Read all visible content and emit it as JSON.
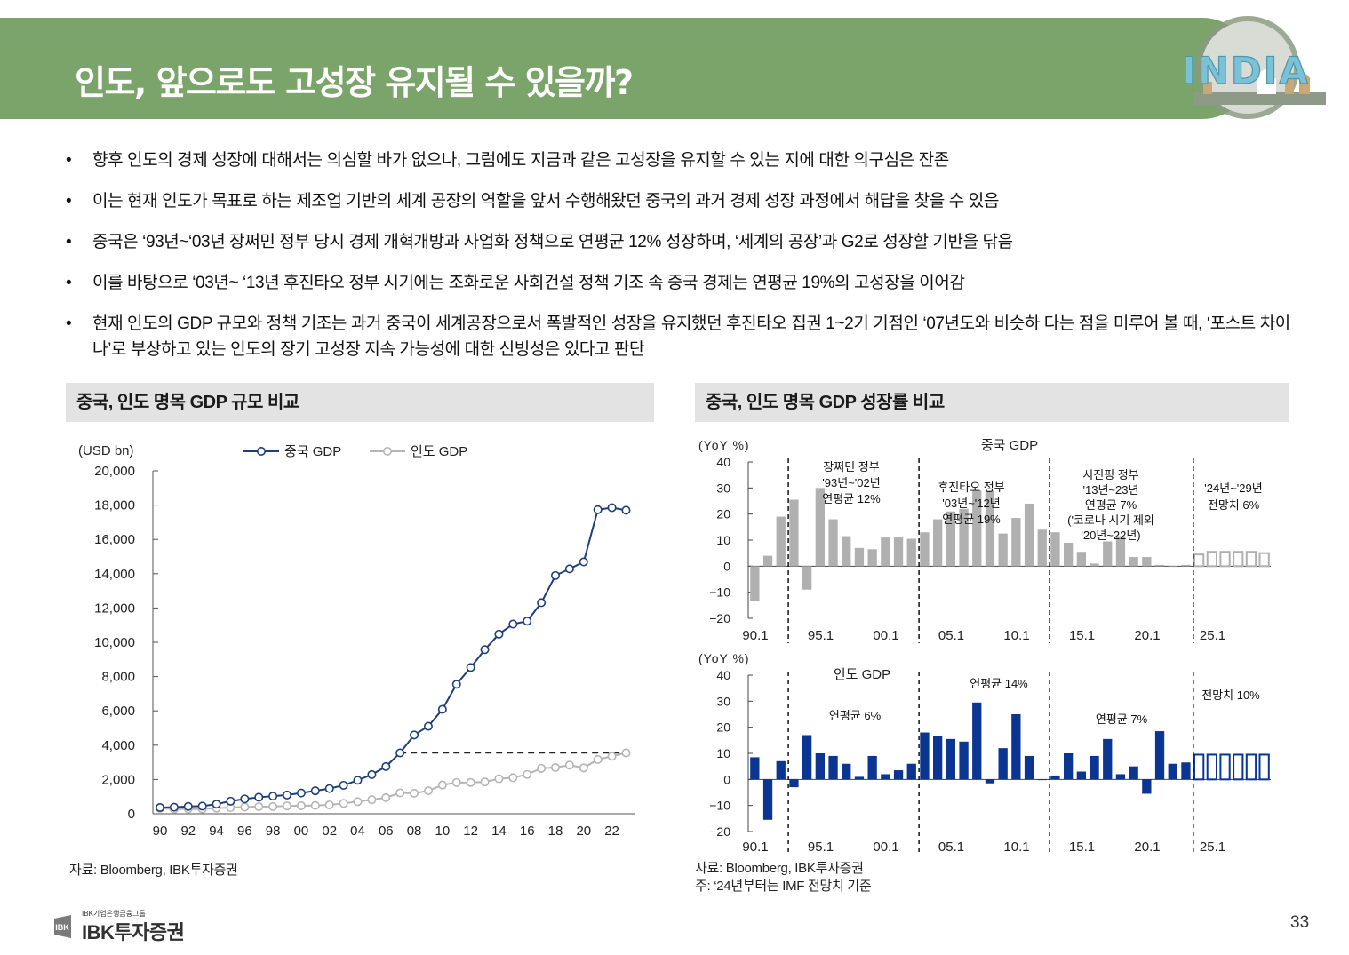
{
  "header": {
    "title": "인도, 앞으로도 고성장 유지될 수 있을까?",
    "badge_text": "INDIA"
  },
  "bullets": [
    "향후 인도의 경제 성장에 대해서는 의심할 바가 없으나, 그럼에도 지금과 같은 고성장을 유지할 수 있는 지에 대한 의구심은 잔존",
    "이는 현재 인도가 목표로 하는 제조업 기반의 세계 공장의 역할을 앞서 수행해왔던 중국의 과거 경제 성장 과정에서 해답을 찾을 수 있음",
    "중국은 ‘93년~‘03년 장쩌민 정부 당시 경제 개혁개방과 사업화 정책으로 연평균 12% 성장하며, ‘세계의 공장’과 G2로 성장할 기반을 닦음",
    "이를 바탕으로 ‘03년~ ‘13년 후진타오 정부 시기에는 조화로운 사회건설 정책 기조 속 중국 경제는 연평균 19%의 고성장을 이어감",
    "현재 인도의 GDP 규모와 정책 기조는 과거 중국이 세계공장으로서 폭발적인 성장을 유지했던 후진타오 집권 1~2기 기점인 ‘07년도와 비슷하 다는 점을 미루어 볼 때, ‘포스트 차이나’로 부상하고 있는 인도의 장기 고성장 지속 가능성에 대한 신빙성은 있다고 판단"
  ],
  "left_section": {
    "title": "중국, 인도 명목 GDP 규모 비교",
    "source": "자료: Bloomberg, IBK투자증권"
  },
  "right_section": {
    "title": "중국, 인도 명목 GDP 성장률 비교",
    "source": "자료: Bloomberg, IBK투자증권",
    "note": "주: ‘24년부터는 IMF 전망치 기준"
  },
  "footer": {
    "company_sub": "IBK기업은행금융그룹",
    "company": "IBK투자증권",
    "page": "33"
  },
  "colors": {
    "header_green": "#7ba46a",
    "china_line": "#1f3f7a",
    "india_line": "#b5b5b5",
    "china_bar": "#b0b0b0",
    "india_bar": "#0a3592"
  },
  "chart_data": [
    {
      "id": "gdp_level",
      "type": "line",
      "ylabel": "(USD bn)",
      "ylim": [
        0,
        20000
      ],
      "yticks": [
        0,
        2000,
        4000,
        6000,
        8000,
        10000,
        12000,
        14000,
        16000,
        18000,
        20000
      ],
      "ytick_labels": [
        "0",
        "2,000",
        "4,000",
        "6,000",
        "8,000",
        "10,000",
        "12,000",
        "14,000",
        "16,000",
        "18,000",
        "20,000"
      ],
      "x": [
        1990,
        1991,
        1992,
        1993,
        1994,
        1995,
        1996,
        1997,
        1998,
        1999,
        2000,
        2001,
        2002,
        2003,
        2004,
        2005,
        2006,
        2007,
        2008,
        2009,
        2010,
        2011,
        2012,
        2013,
        2014,
        2015,
        2016,
        2017,
        2018,
        2019,
        2020,
        2021,
        2022,
        2023
      ],
      "xtick_labels": [
        "90",
        "92",
        "94",
        "96",
        "98",
        "00",
        "02",
        "04",
        "06",
        "08",
        "10",
        "12",
        "14",
        "16",
        "18",
        "20",
        "22"
      ],
      "legend": [
        "중국 GDP",
        "인도 GDP"
      ],
      "series": [
        {
          "name": "중국 GDP",
          "values": [
            361,
            383,
            427,
            445,
            564,
            734,
            864,
            962,
            1029,
            1094,
            1211,
            1339,
            1471,
            1660,
            1955,
            2286,
            2752,
            3550,
            4594,
            5102,
            6087,
            7552,
            8532,
            9570,
            10476,
            11062,
            11233,
            12310,
            13895,
            14280,
            14688,
            17734,
            17849,
            17700
          ]
        },
        {
          "name": "인도 GDP",
          "values": [
            321,
            270,
            288,
            279,
            327,
            360,
            393,
            415,
            421,
            458,
            468,
            485,
            515,
            607,
            709,
            820,
            940,
            1216,
            1199,
            1342,
            1676,
            1823,
            1828,
            1857,
            2039,
            2103,
            2295,
            2651,
            2702,
            2835,
            2674,
            3167,
            3353,
            3550
          ]
        }
      ],
      "annotation": {
        "type": "dashed-hline",
        "value": 3550,
        "from_x": 2007,
        "to_x": 2023
      }
    },
    {
      "id": "china_growth",
      "type": "bar",
      "title": "중국 GDP",
      "ylabel": "(YoY %)",
      "ylim": [
        -20,
        40
      ],
      "yticks": [
        -20,
        -10,
        0,
        10,
        20,
        30,
        40
      ],
      "ytick_labels": [
        "−20",
        "−10",
        "0",
        "10",
        "20",
        "30",
        "40"
      ],
      "x": [
        1990,
        1991,
        1992,
        1993,
        1994,
        1995,
        1996,
        1997,
        1998,
        1999,
        2000,
        2001,
        2002,
        2003,
        2004,
        2005,
        2006,
        2007,
        2008,
        2009,
        2010,
        2011,
        2012,
        2013,
        2014,
        2015,
        2016,
        2017,
        2018,
        2019,
        2020,
        2021,
        2022,
        2023,
        2024,
        2025,
        2026,
        2027,
        2028,
        2029
      ],
      "xtick_labels": [
        "90.1",
        "95.1",
        "00.1",
        "05.1",
        "10.1",
        "15.1",
        "20.1",
        "25.1"
      ],
      "values": [
        -13.5,
        4,
        19,
        25.5,
        -9,
        30,
        18,
        11.5,
        7,
        6.5,
        11,
        11,
        10.5,
        13,
        18,
        21,
        22,
        29,
        29,
        12.5,
        18.5,
        24,
        14,
        13,
        9,
        5.5,
        1,
        9.5,
        11.5,
        3.5,
        3.5,
        0.5,
        0,
        0.5,
        4.5,
        5.5,
        5.5,
        5.5,
        5.5,
        5
      ],
      "forecast_from": 2024,
      "dividers": [
        1993,
        2003,
        2013,
        2024
      ],
      "annotations": [
        "장쩌민 정부\n'93년~'02년\n연평균 12%",
        "후진타오 정부\n'03년~'12년\n연평균 19%",
        "시진핑 정부\n'13년~23년\n연평균 7%\n('코로나 시기 제외\n'20년~22년)",
        "'24년~'29년\n전망치 6%"
      ]
    },
    {
      "id": "india_growth",
      "type": "bar",
      "title": "인도 GDP",
      "ylabel": "(YoY %)",
      "ylim": [
        -20,
        40
      ],
      "yticks": [
        -20,
        -10,
        0,
        10,
        20,
        30,
        40
      ],
      "ytick_labels": [
        "−20",
        "−10",
        "0",
        "10",
        "20",
        "30",
        "40"
      ],
      "x": [
        1990,
        1991,
        1992,
        1993,
        1994,
        1995,
        1996,
        1997,
        1998,
        1999,
        2000,
        2001,
        2002,
        2003,
        2004,
        2005,
        2006,
        2007,
        2008,
        2009,
        2010,
        2011,
        2012,
        2013,
        2014,
        2015,
        2016,
        2017,
        2018,
        2019,
        2020,
        2021,
        2022,
        2023,
        2024,
        2025,
        2026,
        2027,
        2028,
        2029
      ],
      "xtick_labels": [
        "90.1",
        "95.1",
        "00.1",
        "05.1",
        "10.1",
        "15.1",
        "20.1",
        "25.1"
      ],
      "values": [
        8.5,
        -15.5,
        7,
        -3,
        17,
        10,
        9,
        6,
        1,
        9,
        2,
        3.5,
        6,
        18,
        16.5,
        15.5,
        14.5,
        29.5,
        -1.5,
        12,
        25,
        9,
        0,
        1.5,
        10,
        3,
        9,
        15.5,
        2,
        5,
        -5.5,
        18.5,
        6,
        6.5,
        9.5,
        9.5,
        9.5,
        9.5,
        9.5,
        9.5
      ],
      "forecast_from": 2024,
      "dividers": [
        1993,
        2003,
        2013,
        2024
      ],
      "annotations": [
        "연평균 6%",
        "연평균 14%",
        "연평균 7%",
        "전망치 10%"
      ]
    }
  ]
}
